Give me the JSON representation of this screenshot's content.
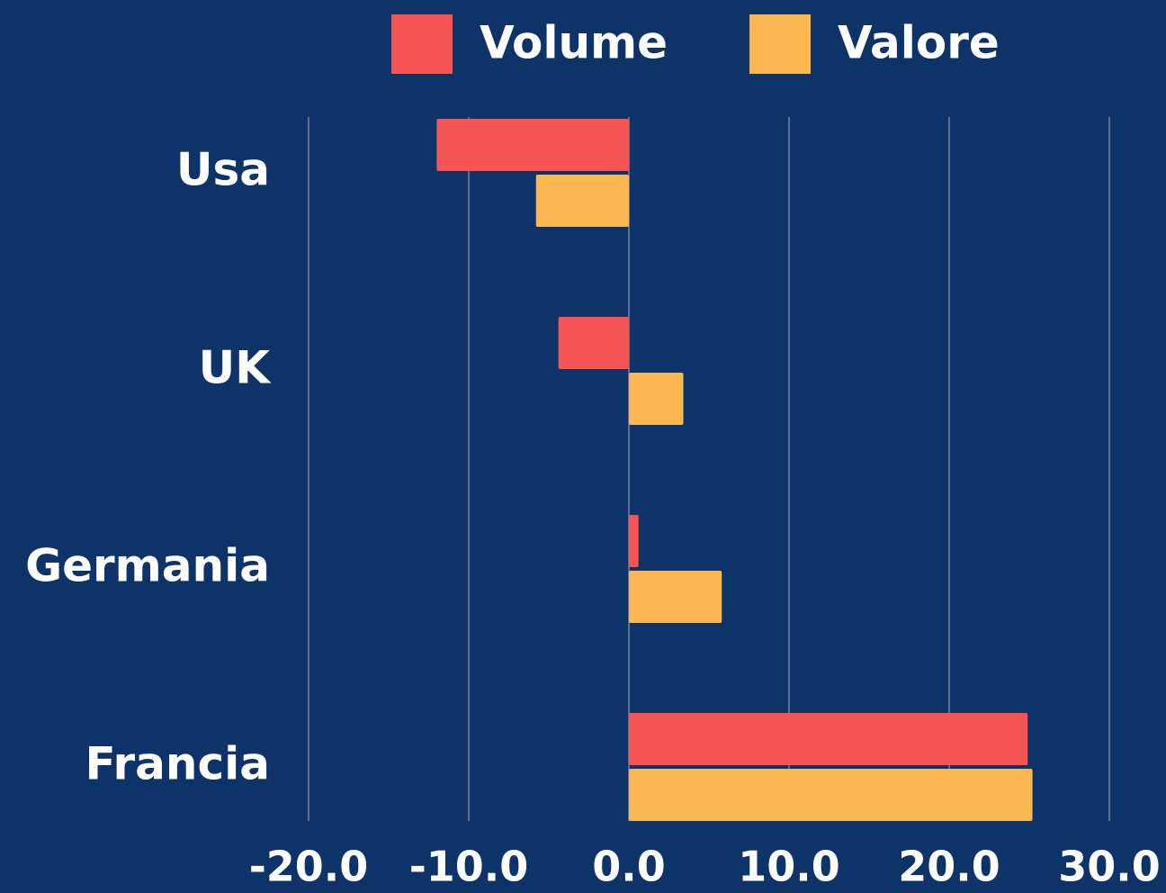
{
  "chart_data": {
    "type": "hbar",
    "categories": [
      "Usa",
      "UK",
      "Germania",
      "Francia"
    ],
    "series": [
      {
        "name": "Volume",
        "color": "#f65555",
        "values": [
          -12.0,
          -4.4,
          0.6,
          24.9
        ]
      },
      {
        "name": "Valore",
        "color": "#fbb852",
        "values": [
          -5.8,
          3.4,
          5.8,
          25.2
        ]
      }
    ],
    "xlim": [
      -20,
      30
    ],
    "xticks": [
      {
        "value": -20,
        "label": "-20.0"
      },
      {
        "value": -10,
        "label": "-10.0"
      },
      {
        "value": 0,
        "label": "0.0"
      },
      {
        "value": 10,
        "label": "10.0"
      },
      {
        "value": 20,
        "label": "20.0"
      },
      {
        "value": 30,
        "label": "30.0"
      }
    ],
    "grid": true
  }
}
